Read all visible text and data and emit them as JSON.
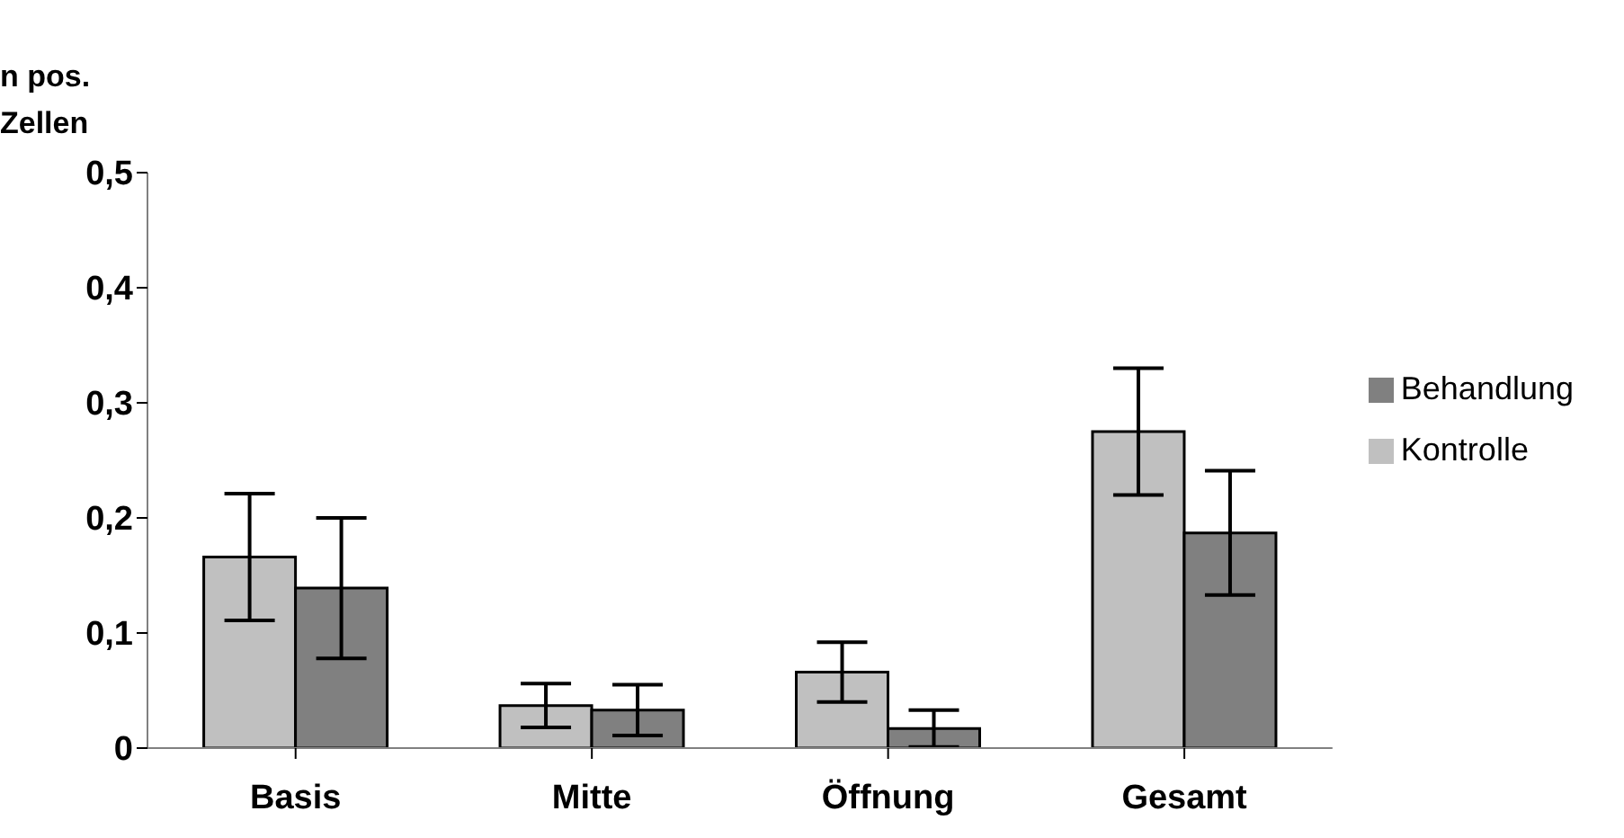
{
  "chart_data": {
    "type": "bar",
    "ylabel": "n pos. Zellen",
    "categories": [
      "Basis",
      "Mitte",
      "Öffnung",
      "Gesamt"
    ],
    "series": [
      {
        "name": "Kontrolle",
        "color": "#c0c0c0",
        "values": [
          0.166,
          0.037,
          0.066,
          0.275
        ],
        "errors": [
          0.055,
          0.019,
          0.026,
          0.055
        ]
      },
      {
        "name": "Behandlung",
        "color": "#808080",
        "values": [
          0.139,
          0.033,
          0.017,
          0.187
        ],
        "errors": [
          0.061,
          0.022,
          0.016,
          0.054
        ]
      }
    ],
    "ylim": [
      0,
      0.5
    ],
    "yticks": [
      0,
      {
        "value": 0.1,
        "label": "0,1"
      },
      {
        "value": 0.2,
        "label": "0,2"
      },
      {
        "value": 0.3,
        "label": "0,3"
      },
      {
        "value": 0.4,
        "label": "0,4"
      },
      {
        "value": 0.5,
        "label": "0,5"
      }
    ],
    "grid": false,
    "legend": "right"
  }
}
